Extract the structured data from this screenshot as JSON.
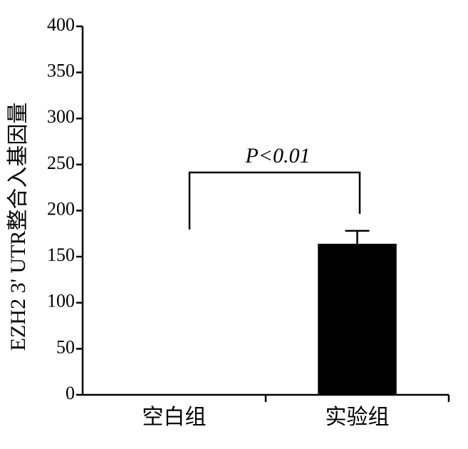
{
  "chart_data": {
    "type": "bar",
    "y_label": "EZH2 3' UTR整合入基因量",
    "categories": [
      "空白组",
      "实验组"
    ],
    "values": [
      0,
      164
    ],
    "errors": [
      null,
      14
    ],
    "color": "#000000",
    "ylim": [
      0,
      400
    ],
    "yticks": [
      0,
      50,
      100,
      150,
      200,
      250,
      300,
      350,
      400
    ],
    "annotation": "P<0.01"
  }
}
